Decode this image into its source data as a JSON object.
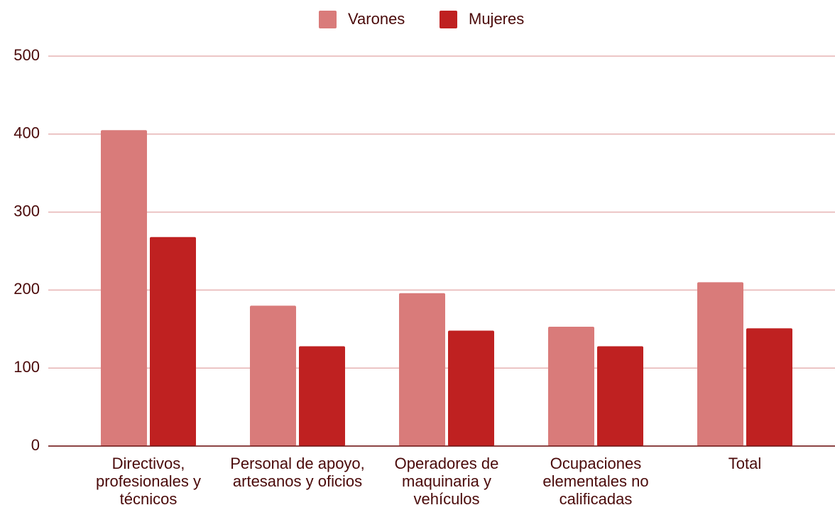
{
  "chart_data": {
    "type": "bar",
    "categories": [
      "Directivos, profesionales y técnicos",
      "Personal de apoyo, artesanos y oficios",
      "Operadores de maquinaria y vehículos",
      "Ocupaciones elementales no calificadas",
      "Total"
    ],
    "series": [
      {
        "name": "Varones",
        "color": "#d97b7a",
        "values": [
          405,
          180,
          196,
          153,
          210
        ]
      },
      {
        "name": "Mujeres",
        "color": "#bf2121",
        "values": [
          268,
          128,
          148,
          128,
          151
        ]
      }
    ],
    "ylim": [
      0,
      500
    ],
    "yticks": [
      0,
      100,
      200,
      300,
      400,
      500
    ],
    "grid": true,
    "legend": "top"
  }
}
